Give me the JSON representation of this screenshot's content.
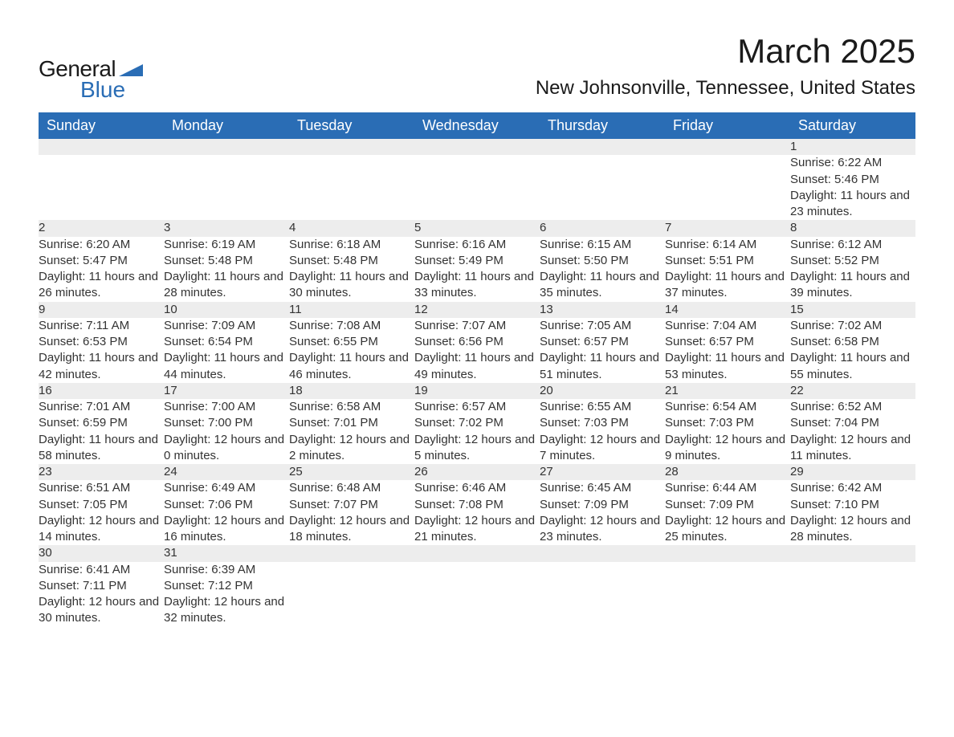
{
  "logo": {
    "general": "General",
    "blue": "Blue",
    "mark_color": "#2a6db5"
  },
  "header": {
    "month_title": "March 2025",
    "location": "New Johnsonville, Tennessee, United States"
  },
  "colors": {
    "header_bg": "#2a6db5",
    "header_text": "#ffffff",
    "daynum_bg": "#ededed",
    "row_divider": "#2a6db5",
    "body_text": "#333333",
    "page_bg": "#ffffff"
  },
  "typography": {
    "month_title_fontsize": 42,
    "location_fontsize": 24,
    "weekday_fontsize": 18,
    "daynum_fontsize": 17,
    "cell_fontsize": 15
  },
  "weekdays": [
    "Sunday",
    "Monday",
    "Tuesday",
    "Wednesday",
    "Thursday",
    "Friday",
    "Saturday"
  ],
  "weeks": [
    [
      null,
      null,
      null,
      null,
      null,
      null,
      {
        "n": "1",
        "sunrise": "Sunrise: 6:22 AM",
        "sunset": "Sunset: 5:46 PM",
        "daylight": "Daylight: 11 hours and 23 minutes."
      }
    ],
    [
      {
        "n": "2",
        "sunrise": "Sunrise: 6:20 AM",
        "sunset": "Sunset: 5:47 PM",
        "daylight": "Daylight: 11 hours and 26 minutes."
      },
      {
        "n": "3",
        "sunrise": "Sunrise: 6:19 AM",
        "sunset": "Sunset: 5:48 PM",
        "daylight": "Daylight: 11 hours and 28 minutes."
      },
      {
        "n": "4",
        "sunrise": "Sunrise: 6:18 AM",
        "sunset": "Sunset: 5:48 PM",
        "daylight": "Daylight: 11 hours and 30 minutes."
      },
      {
        "n": "5",
        "sunrise": "Sunrise: 6:16 AM",
        "sunset": "Sunset: 5:49 PM",
        "daylight": "Daylight: 11 hours and 33 minutes."
      },
      {
        "n": "6",
        "sunrise": "Sunrise: 6:15 AM",
        "sunset": "Sunset: 5:50 PM",
        "daylight": "Daylight: 11 hours and 35 minutes."
      },
      {
        "n": "7",
        "sunrise": "Sunrise: 6:14 AM",
        "sunset": "Sunset: 5:51 PM",
        "daylight": "Daylight: 11 hours and 37 minutes."
      },
      {
        "n": "8",
        "sunrise": "Sunrise: 6:12 AM",
        "sunset": "Sunset: 5:52 PM",
        "daylight": "Daylight: 11 hours and 39 minutes."
      }
    ],
    [
      {
        "n": "9",
        "sunrise": "Sunrise: 7:11 AM",
        "sunset": "Sunset: 6:53 PM",
        "daylight": "Daylight: 11 hours and 42 minutes."
      },
      {
        "n": "10",
        "sunrise": "Sunrise: 7:09 AM",
        "sunset": "Sunset: 6:54 PM",
        "daylight": "Daylight: 11 hours and 44 minutes."
      },
      {
        "n": "11",
        "sunrise": "Sunrise: 7:08 AM",
        "sunset": "Sunset: 6:55 PM",
        "daylight": "Daylight: 11 hours and 46 minutes."
      },
      {
        "n": "12",
        "sunrise": "Sunrise: 7:07 AM",
        "sunset": "Sunset: 6:56 PM",
        "daylight": "Daylight: 11 hours and 49 minutes."
      },
      {
        "n": "13",
        "sunrise": "Sunrise: 7:05 AM",
        "sunset": "Sunset: 6:57 PM",
        "daylight": "Daylight: 11 hours and 51 minutes."
      },
      {
        "n": "14",
        "sunrise": "Sunrise: 7:04 AM",
        "sunset": "Sunset: 6:57 PM",
        "daylight": "Daylight: 11 hours and 53 minutes."
      },
      {
        "n": "15",
        "sunrise": "Sunrise: 7:02 AM",
        "sunset": "Sunset: 6:58 PM",
        "daylight": "Daylight: 11 hours and 55 minutes."
      }
    ],
    [
      {
        "n": "16",
        "sunrise": "Sunrise: 7:01 AM",
        "sunset": "Sunset: 6:59 PM",
        "daylight": "Daylight: 11 hours and 58 minutes."
      },
      {
        "n": "17",
        "sunrise": "Sunrise: 7:00 AM",
        "sunset": "Sunset: 7:00 PM",
        "daylight": "Daylight: 12 hours and 0 minutes."
      },
      {
        "n": "18",
        "sunrise": "Sunrise: 6:58 AM",
        "sunset": "Sunset: 7:01 PM",
        "daylight": "Daylight: 12 hours and 2 minutes."
      },
      {
        "n": "19",
        "sunrise": "Sunrise: 6:57 AM",
        "sunset": "Sunset: 7:02 PM",
        "daylight": "Daylight: 12 hours and 5 minutes."
      },
      {
        "n": "20",
        "sunrise": "Sunrise: 6:55 AM",
        "sunset": "Sunset: 7:03 PM",
        "daylight": "Daylight: 12 hours and 7 minutes."
      },
      {
        "n": "21",
        "sunrise": "Sunrise: 6:54 AM",
        "sunset": "Sunset: 7:03 PM",
        "daylight": "Daylight: 12 hours and 9 minutes."
      },
      {
        "n": "22",
        "sunrise": "Sunrise: 6:52 AM",
        "sunset": "Sunset: 7:04 PM",
        "daylight": "Daylight: 12 hours and 11 minutes."
      }
    ],
    [
      {
        "n": "23",
        "sunrise": "Sunrise: 6:51 AM",
        "sunset": "Sunset: 7:05 PM",
        "daylight": "Daylight: 12 hours and 14 minutes."
      },
      {
        "n": "24",
        "sunrise": "Sunrise: 6:49 AM",
        "sunset": "Sunset: 7:06 PM",
        "daylight": "Daylight: 12 hours and 16 minutes."
      },
      {
        "n": "25",
        "sunrise": "Sunrise: 6:48 AM",
        "sunset": "Sunset: 7:07 PM",
        "daylight": "Daylight: 12 hours and 18 minutes."
      },
      {
        "n": "26",
        "sunrise": "Sunrise: 6:46 AM",
        "sunset": "Sunset: 7:08 PM",
        "daylight": "Daylight: 12 hours and 21 minutes."
      },
      {
        "n": "27",
        "sunrise": "Sunrise: 6:45 AM",
        "sunset": "Sunset: 7:09 PM",
        "daylight": "Daylight: 12 hours and 23 minutes."
      },
      {
        "n": "28",
        "sunrise": "Sunrise: 6:44 AM",
        "sunset": "Sunset: 7:09 PM",
        "daylight": "Daylight: 12 hours and 25 minutes."
      },
      {
        "n": "29",
        "sunrise": "Sunrise: 6:42 AM",
        "sunset": "Sunset: 7:10 PM",
        "daylight": "Daylight: 12 hours and 28 minutes."
      }
    ],
    [
      {
        "n": "30",
        "sunrise": "Sunrise: 6:41 AM",
        "sunset": "Sunset: 7:11 PM",
        "daylight": "Daylight: 12 hours and 30 minutes."
      },
      {
        "n": "31",
        "sunrise": "Sunrise: 6:39 AM",
        "sunset": "Sunset: 7:12 PM",
        "daylight": "Daylight: 12 hours and 32 minutes."
      },
      null,
      null,
      null,
      null,
      null
    ]
  ]
}
